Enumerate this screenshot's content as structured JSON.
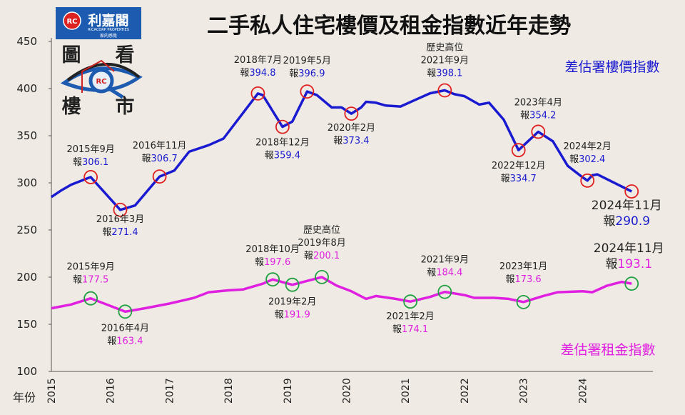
{
  "title": "二手私人住宅樓價及租金指數近年走勢",
  "logo": {
    "brand": "利嘉閣",
    "english": "RICACORP PROPERTIES",
    "slogan": "家的感覺",
    "mark": "RC",
    "eye_chars": [
      "圖",
      "看",
      "樓",
      "市"
    ]
  },
  "colors": {
    "price": "#1a1ad0",
    "rent": "#e020e0",
    "price_marker": "#e02020",
    "rent_marker": "#20a040",
    "background": "#efebe4"
  },
  "chart_data": {
    "type": "line",
    "title": "二手私人住宅樓價及租金指數近年走勢",
    "xlabel": "年份",
    "ylabel": "",
    "ylim": [
      100,
      450
    ],
    "yticks": [
      100,
      150,
      200,
      250,
      300,
      350,
      400,
      450
    ],
    "xticks": [
      "2015",
      "2016",
      "2017",
      "2018",
      "2019",
      "2020",
      "2021",
      "2022",
      "2023",
      "2024"
    ],
    "grid": false,
    "series": [
      {
        "name": "差估署樓價指數",
        "points": [
          [
            "2015-01",
            285
          ],
          [
            "2015-03",
            292
          ],
          [
            "2015-05",
            298
          ],
          [
            "2015-09",
            306.1
          ],
          [
            "2016-03",
            271.4
          ],
          [
            "2016-06",
            276
          ],
          [
            "2016-11",
            306.7
          ],
          [
            "2017-02",
            313
          ],
          [
            "2017-05",
            333
          ],
          [
            "2017-09",
            340
          ],
          [
            "2017-12",
            347
          ],
          [
            "2018-07",
            394.8
          ],
          [
            "2018-08",
            393
          ],
          [
            "2018-12",
            359.4
          ],
          [
            "2019-02",
            365
          ],
          [
            "2019-05",
            396.9
          ],
          [
            "2019-07",
            393
          ],
          [
            "2019-10",
            380
          ],
          [
            "2019-12",
            380
          ],
          [
            "2020-02",
            373.4
          ],
          [
            "2020-04",
            380
          ],
          [
            "2020-05",
            386
          ],
          [
            "2020-07",
            385
          ],
          [
            "2020-09",
            382
          ],
          [
            "2020-12",
            381
          ],
          [
            "2021-03",
            388
          ],
          [
            "2021-06",
            395
          ],
          [
            "2021-09",
            398.1
          ],
          [
            "2021-11",
            394
          ],
          [
            "2022-01",
            392
          ],
          [
            "2022-04",
            383
          ],
          [
            "2022-06",
            385
          ],
          [
            "2022-09",
            367
          ],
          [
            "2022-12",
            334.7
          ],
          [
            "2023-04",
            354.2
          ],
          [
            "2023-07",
            344
          ],
          [
            "2023-10",
            318
          ],
          [
            "2024-01",
            306
          ],
          [
            "2024-02",
            302.4
          ],
          [
            "2024-03",
            308
          ],
          [
            "2024-04",
            309
          ],
          [
            "2024-11",
            290.9
          ]
        ],
        "annotations": [
          {
            "date": "2015-09",
            "lines": [
              "2015年9月"
            ],
            "prefix": "報",
            "value": "306.1"
          },
          {
            "date": "2016-03",
            "lines": [
              "2016年3月"
            ],
            "prefix": "報",
            "value": "271.4"
          },
          {
            "date": "2016-11",
            "lines": [
              "2016年11月"
            ],
            "prefix": "報",
            "value": "306.7"
          },
          {
            "date": "2018-07",
            "lines": [
              "2018年7月"
            ],
            "prefix": "報",
            "value": "394.8"
          },
          {
            "date": "2018-12",
            "lines": [
              "2018年12月"
            ],
            "prefix": "報",
            "value": "359.4"
          },
          {
            "date": "2019-05",
            "lines": [
              "2019年5月"
            ],
            "prefix": "報",
            "value": "396.9"
          },
          {
            "date": "2020-02",
            "lines": [
              "2020年2月"
            ],
            "prefix": "報",
            "value": "373.4"
          },
          {
            "date": "2021-09",
            "lines": [
              "歷史高位",
              "2021年9月"
            ],
            "prefix": "報",
            "value": "398.1"
          },
          {
            "date": "2022-12",
            "lines": [
              "2022年12月"
            ],
            "prefix": "報",
            "value": "334.7"
          },
          {
            "date": "2023-04",
            "lines": [
              "2023年4月"
            ],
            "prefix": "報",
            "value": "354.2"
          },
          {
            "date": "2024-02",
            "lines": [
              "2024年2月"
            ],
            "prefix": "報",
            "value": "302.4"
          },
          {
            "date": "2024-11",
            "lines": [
              "2024年11月"
            ],
            "prefix": "報",
            "value": "290.9"
          }
        ]
      },
      {
        "name": "差估署租金指數",
        "points": [
          [
            "2015-01",
            167
          ],
          [
            "2015-05",
            171
          ],
          [
            "2015-09",
            177.5
          ],
          [
            "2016-04",
            163.4
          ],
          [
            "2016-08",
            167
          ],
          [
            "2017-01",
            172
          ],
          [
            "2017-06",
            178
          ],
          [
            "2017-09",
            184
          ],
          [
            "2018-01",
            186
          ],
          [
            "2018-04",
            187
          ],
          [
            "2018-08",
            193
          ],
          [
            "2018-10",
            197.6
          ],
          [
            "2019-02",
            191.9
          ],
          [
            "2019-08",
            200.1
          ],
          [
            "2019-11",
            191
          ],
          [
            "2020-02",
            185
          ],
          [
            "2020-05",
            177
          ],
          [
            "2020-07",
            180
          ],
          [
            "2020-11",
            177
          ],
          [
            "2021-02",
            174.1
          ],
          [
            "2021-06",
            179
          ],
          [
            "2021-09",
            184.4
          ],
          [
            "2022-01",
            181
          ],
          [
            "2022-03",
            178
          ],
          [
            "2022-07",
            178
          ],
          [
            "2022-10",
            177
          ],
          [
            "2023-01",
            173.6
          ],
          [
            "2023-05",
            180
          ],
          [
            "2023-08",
            184
          ],
          [
            "2024-01",
            185
          ],
          [
            "2024-03",
            184
          ],
          [
            "2024-06",
            191
          ],
          [
            "2024-09",
            195
          ],
          [
            "2024-11",
            193.1
          ]
        ],
        "annotations": [
          {
            "date": "2015-09",
            "lines": [
              "2015年9月"
            ],
            "prefix": "報",
            "value": "177.5"
          },
          {
            "date": "2016-04",
            "lines": [
              "2016年4月"
            ],
            "prefix": "報",
            "value": "163.4"
          },
          {
            "date": "2018-10",
            "lines": [
              "2018年10月"
            ],
            "prefix": "報",
            "value": "197.6"
          },
          {
            "date": "2019-02",
            "lines": [
              "2019年2月"
            ],
            "prefix": "報",
            "value": "191.9"
          },
          {
            "date": "2019-08",
            "lines": [
              "歷史高位",
              "2019年8月"
            ],
            "prefix": "報",
            "value": "200.1"
          },
          {
            "date": "2021-02",
            "lines": [
              "2021年2月"
            ],
            "prefix": "報",
            "value": "174.1"
          },
          {
            "date": "2021-09",
            "lines": [
              "2021年9月"
            ],
            "prefix": "報",
            "value": "184.4"
          },
          {
            "date": "2023-01",
            "lines": [
              "2023年1月"
            ],
            "prefix": "報",
            "value": "173.6"
          },
          {
            "date": "2024-11",
            "lines": [
              "2024年11月"
            ],
            "prefix": "報",
            "value": "193.1"
          }
        ]
      }
    ]
  }
}
